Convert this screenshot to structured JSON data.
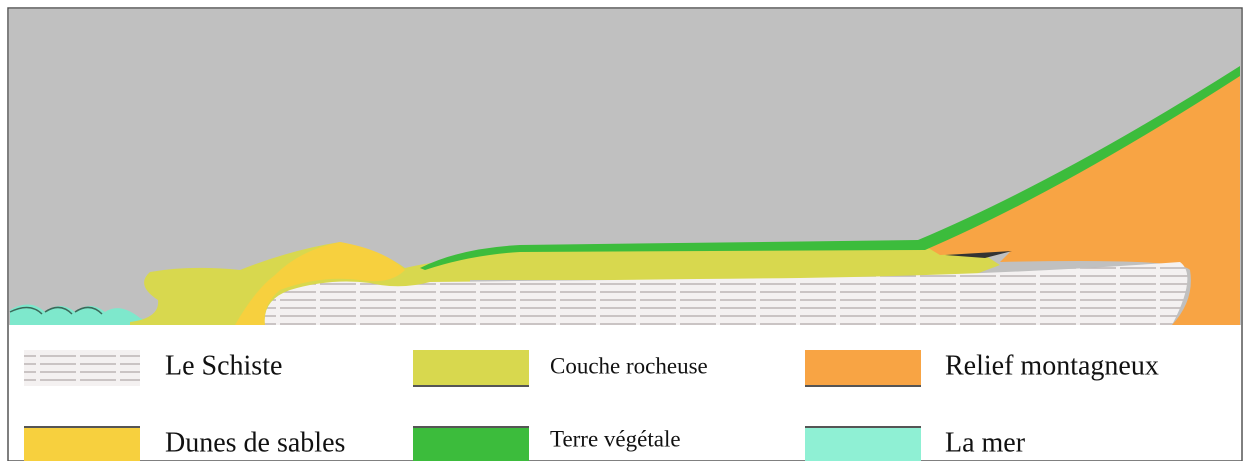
{
  "legend": {
    "items": [
      {
        "label": "Le Schiste"
      },
      {
        "label": "Couche rocheuse"
      },
      {
        "label": "Relief montagneux"
      },
      {
        "label": "Dunes de sables"
      },
      {
        "label": "Terre végétale"
      },
      {
        "label": "La mer"
      }
    ]
  }
}
